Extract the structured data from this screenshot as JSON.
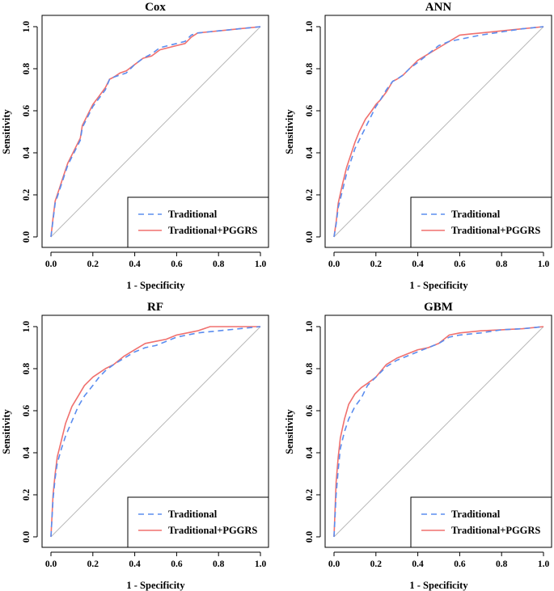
{
  "colors": {
    "traditional": "#5b8def",
    "traditional_pggrs": "#f0706e",
    "diagonal": "#b9b9b9",
    "axis": "#000000"
  },
  "chart_data": [
    {
      "type": "line",
      "title": "Cox",
      "xlabel": "1 - Specificity",
      "ylabel": "Sensitivity",
      "xlim": [
        0,
        1
      ],
      "ylim": [
        0,
        1
      ],
      "xticks": [
        "0.0",
        "0.2",
        "0.4",
        "0.6",
        "0.8",
        "1.0"
      ],
      "yticks": [
        "0.0",
        "0.2",
        "0.4",
        "0.6",
        "0.8",
        "1.0"
      ],
      "legend_position": "bottom-right",
      "series": [
        {
          "name": "Traditional",
          "style": "dashed",
          "x": [
            0,
            0.01,
            0.02,
            0.04,
            0.06,
            0.08,
            0.1,
            0.12,
            0.14,
            0.15,
            0.18,
            0.2,
            0.23,
            0.26,
            0.28,
            0.3,
            0.33,
            0.36,
            0.4,
            0.44,
            0.48,
            0.52,
            0.56,
            0.6,
            0.64,
            0.67,
            0.7,
            0.75,
            0.8,
            0.85,
            0.9,
            0.95,
            1.0
          ],
          "y": [
            0,
            0.08,
            0.16,
            0.22,
            0.28,
            0.34,
            0.38,
            0.42,
            0.46,
            0.52,
            0.58,
            0.62,
            0.66,
            0.7,
            0.75,
            0.76,
            0.77,
            0.78,
            0.82,
            0.85,
            0.87,
            0.9,
            0.91,
            0.92,
            0.93,
            0.96,
            0.97,
            0.975,
            0.98,
            0.985,
            0.99,
            0.995,
            1.0
          ]
        },
        {
          "name": "Traditional+PGGRS",
          "style": "solid",
          "x": [
            0,
            0.01,
            0.02,
            0.04,
            0.06,
            0.08,
            0.1,
            0.12,
            0.14,
            0.15,
            0.18,
            0.2,
            0.23,
            0.26,
            0.28,
            0.3,
            0.33,
            0.36,
            0.4,
            0.44,
            0.48,
            0.52,
            0.56,
            0.6,
            0.64,
            0.67,
            0.7,
            0.75,
            0.8,
            0.85,
            0.9,
            0.95,
            1.0
          ],
          "y": [
            0,
            0.09,
            0.17,
            0.23,
            0.29,
            0.35,
            0.39,
            0.43,
            0.47,
            0.53,
            0.59,
            0.63,
            0.67,
            0.71,
            0.75,
            0.76,
            0.78,
            0.79,
            0.82,
            0.85,
            0.86,
            0.89,
            0.9,
            0.91,
            0.92,
            0.95,
            0.97,
            0.975,
            0.98,
            0.985,
            0.99,
            0.995,
            1.0
          ]
        }
      ]
    },
    {
      "type": "line",
      "title": "ANN",
      "xlabel": "1 - Specificity",
      "ylabel": "Sensitivity",
      "xlim": [
        0,
        1
      ],
      "ylim": [
        0,
        1
      ],
      "xticks": [
        "0.0",
        "0.2",
        "0.4",
        "0.6",
        "0.8",
        "1.0"
      ],
      "yticks": [
        "0.0",
        "0.2",
        "0.4",
        "0.6",
        "0.8",
        "1.0"
      ],
      "legend_position": "bottom-right",
      "series": [
        {
          "name": "Traditional",
          "style": "dashed",
          "x": [
            0,
            0.01,
            0.02,
            0.04,
            0.06,
            0.08,
            0.1,
            0.12,
            0.15,
            0.18,
            0.2,
            0.22,
            0.25,
            0.28,
            0.3,
            0.33,
            0.36,
            0.4,
            0.45,
            0.5,
            0.55,
            0.6,
            0.65,
            0.7,
            0.8,
            0.9,
            1.0
          ],
          "y": [
            0,
            0.06,
            0.14,
            0.22,
            0.3,
            0.36,
            0.42,
            0.46,
            0.52,
            0.58,
            0.62,
            0.65,
            0.7,
            0.74,
            0.75,
            0.77,
            0.8,
            0.83,
            0.87,
            0.91,
            0.93,
            0.94,
            0.95,
            0.96,
            0.975,
            0.99,
            1.0
          ]
        },
        {
          "name": "Traditional+PGGRS",
          "style": "solid",
          "x": [
            0,
            0.01,
            0.02,
            0.04,
            0.06,
            0.08,
            0.1,
            0.12,
            0.15,
            0.18,
            0.2,
            0.22,
            0.25,
            0.28,
            0.3,
            0.33,
            0.36,
            0.4,
            0.45,
            0.5,
            0.55,
            0.6,
            0.65,
            0.7,
            0.8,
            0.9,
            1.0
          ],
          "y": [
            0,
            0.07,
            0.16,
            0.25,
            0.33,
            0.39,
            0.45,
            0.5,
            0.56,
            0.6,
            0.63,
            0.65,
            0.69,
            0.74,
            0.75,
            0.77,
            0.8,
            0.84,
            0.87,
            0.9,
            0.93,
            0.96,
            0.965,
            0.97,
            0.98,
            0.99,
            1.0
          ]
        }
      ]
    },
    {
      "type": "line",
      "title": "RF",
      "xlabel": "1 - Specificity",
      "ylabel": "Sensitivity",
      "xlim": [
        0,
        1
      ],
      "ylim": [
        0,
        1
      ],
      "xticks": [
        "0.0",
        "0.2",
        "0.4",
        "0.6",
        "0.8",
        "1.0"
      ],
      "yticks": [
        "0.0",
        "0.2",
        "0.4",
        "0.6",
        "0.8",
        "1.0"
      ],
      "legend_position": "bottom-right",
      "series": [
        {
          "name": "Traditional",
          "style": "dashed",
          "x": [
            0,
            0.01,
            0.02,
            0.03,
            0.05,
            0.07,
            0.1,
            0.13,
            0.16,
            0.2,
            0.23,
            0.26,
            0.3,
            0.35,
            0.4,
            0.45,
            0.5,
            0.55,
            0.6,
            0.65,
            0.7,
            0.8,
            0.9,
            1.0
          ],
          "y": [
            0,
            0.18,
            0.28,
            0.35,
            0.42,
            0.48,
            0.55,
            0.62,
            0.67,
            0.72,
            0.76,
            0.79,
            0.82,
            0.85,
            0.88,
            0.9,
            0.91,
            0.93,
            0.95,
            0.96,
            0.97,
            0.98,
            0.99,
            1.0
          ]
        },
        {
          "name": "Traditional+PGGRS",
          "style": "solid",
          "x": [
            0,
            0.01,
            0.02,
            0.03,
            0.05,
            0.07,
            0.1,
            0.13,
            0.16,
            0.2,
            0.23,
            0.26,
            0.3,
            0.35,
            0.4,
            0.45,
            0.5,
            0.55,
            0.6,
            0.65,
            0.7,
            0.76,
            0.8,
            0.9,
            1.0
          ],
          "y": [
            0,
            0.2,
            0.3,
            0.38,
            0.46,
            0.54,
            0.62,
            0.67,
            0.72,
            0.76,
            0.78,
            0.8,
            0.82,
            0.86,
            0.89,
            0.92,
            0.93,
            0.94,
            0.96,
            0.97,
            0.98,
            1.0,
            1.0,
            1.0,
            1.0
          ]
        }
      ]
    },
    {
      "type": "line",
      "title": "GBM",
      "xlabel": "1 - Specificity",
      "ylabel": "Sensitivity",
      "xlim": [
        0,
        1
      ],
      "ylim": [
        0,
        1
      ],
      "xticks": [
        "0.0",
        "0.2",
        "0.4",
        "0.6",
        "0.8",
        "1.0"
      ],
      "yticks": [
        "0.0",
        "0.2",
        "0.4",
        "0.6",
        "0.8",
        "1.0"
      ],
      "legend_position": "bottom-right",
      "series": [
        {
          "name": "Traditional",
          "style": "dashed",
          "x": [
            0,
            0.01,
            0.02,
            0.03,
            0.05,
            0.07,
            0.1,
            0.13,
            0.16,
            0.2,
            0.25,
            0.3,
            0.35,
            0.4,
            0.45,
            0.5,
            0.55,
            0.6,
            0.7,
            0.8,
            0.9,
            1.0
          ],
          "y": [
            0,
            0.2,
            0.32,
            0.42,
            0.5,
            0.56,
            0.62,
            0.66,
            0.72,
            0.76,
            0.81,
            0.84,
            0.86,
            0.88,
            0.9,
            0.92,
            0.95,
            0.96,
            0.97,
            0.985,
            0.99,
            1.0
          ]
        },
        {
          "name": "Traditional+PGGRS",
          "style": "solid",
          "x": [
            0,
            0.01,
            0.02,
            0.03,
            0.05,
            0.07,
            0.1,
            0.13,
            0.16,
            0.2,
            0.25,
            0.3,
            0.35,
            0.4,
            0.45,
            0.5,
            0.55,
            0.6,
            0.7,
            0.8,
            0.9,
            1.0
          ],
          "y": [
            0,
            0.26,
            0.38,
            0.47,
            0.56,
            0.63,
            0.68,
            0.71,
            0.73,
            0.76,
            0.82,
            0.85,
            0.87,
            0.89,
            0.9,
            0.92,
            0.96,
            0.97,
            0.98,
            0.985,
            0.99,
            1.0
          ]
        }
      ]
    }
  ]
}
